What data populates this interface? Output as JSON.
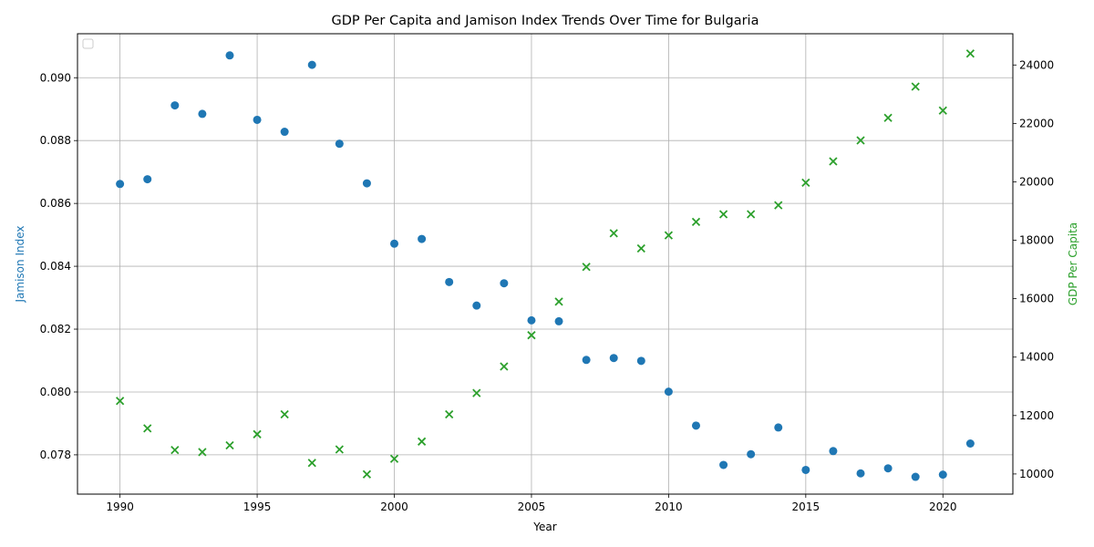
{
  "chart_data": {
    "type": "scatter",
    "title": "GDP Per Capita and Jamison Index Trends Over Time for Bulgaria",
    "xlabel": "Year",
    "ylabel_left": "Jamison Index",
    "ylabel_right": "GDP Per Capita",
    "xlim": [
      1988.45,
      2022.55
    ],
    "ylim_left": [
      0.07675,
      0.0914
    ],
    "ylim_right": [
      9310,
      25070
    ],
    "xticks": [
      1990,
      1995,
      2000,
      2005,
      2010,
      2015,
      2020
    ],
    "yticks_left": [
      0.078,
      0.08,
      0.082,
      0.084,
      0.086,
      0.088,
      0.09
    ],
    "yticks_left_labels": [
      "0.078",
      "0.080",
      "0.082",
      "0.084",
      "0.086",
      "0.088",
      "0.090"
    ],
    "yticks_right": [
      10000,
      12000,
      14000,
      16000,
      18000,
      20000,
      22000,
      24000
    ],
    "grid": true,
    "legend": "top-left (empty)",
    "colors": {
      "jamison": "#1f77b4",
      "gdp": "#2ca02c"
    },
    "series": [
      {
        "name": "Jamison Index",
        "axis": "left",
        "marker": "circle",
        "x": [
          1990,
          1991,
          1992,
          1993,
          1994,
          1995,
          1996,
          1997,
          1998,
          1999,
          2000,
          2001,
          2002,
          2003,
          2004,
          2005,
          2006,
          2007,
          2008,
          2009,
          2010,
          2011,
          2012,
          2013,
          2014,
          2015,
          2016,
          2017,
          2018,
          2019,
          2020,
          2021
        ],
        "y": [
          0.08662,
          0.08677,
          0.08912,
          0.08885,
          0.09071,
          0.08866,
          0.08828,
          0.09041,
          0.0879,
          0.08664,
          0.08472,
          0.08487,
          0.0835,
          0.08275,
          0.08346,
          0.08228,
          0.08225,
          0.08102,
          0.08108,
          0.08099,
          0.08001,
          0.07893,
          0.07768,
          0.07802,
          0.07887,
          0.07752,
          0.07812,
          0.07741,
          0.07757,
          0.0773,
          0.07737,
          0.07836
        ]
      },
      {
        "name": "GDP Per Capita",
        "axis": "right",
        "marker": "x",
        "x": [
          1990,
          1991,
          1992,
          1993,
          1994,
          1995,
          1996,
          1997,
          1998,
          1999,
          2000,
          2001,
          2002,
          2003,
          2004,
          2005,
          2006,
          2007,
          2008,
          2009,
          2010,
          2011,
          2012,
          2013,
          2014,
          2015,
          2016,
          2017,
          2018,
          2019,
          2020,
          2021
        ],
        "y": [
          12500,
          11560,
          10820,
          10750,
          10980,
          11360,
          12040,
          10380,
          10840,
          9990,
          10520,
          11110,
          12040,
          12770,
          13680,
          14750,
          15900,
          17090,
          18240,
          17720,
          18170,
          18630,
          18890,
          18890,
          19200,
          19970,
          20700,
          21420,
          22190,
          23260,
          22440,
          24390
        ]
      }
    ]
  }
}
